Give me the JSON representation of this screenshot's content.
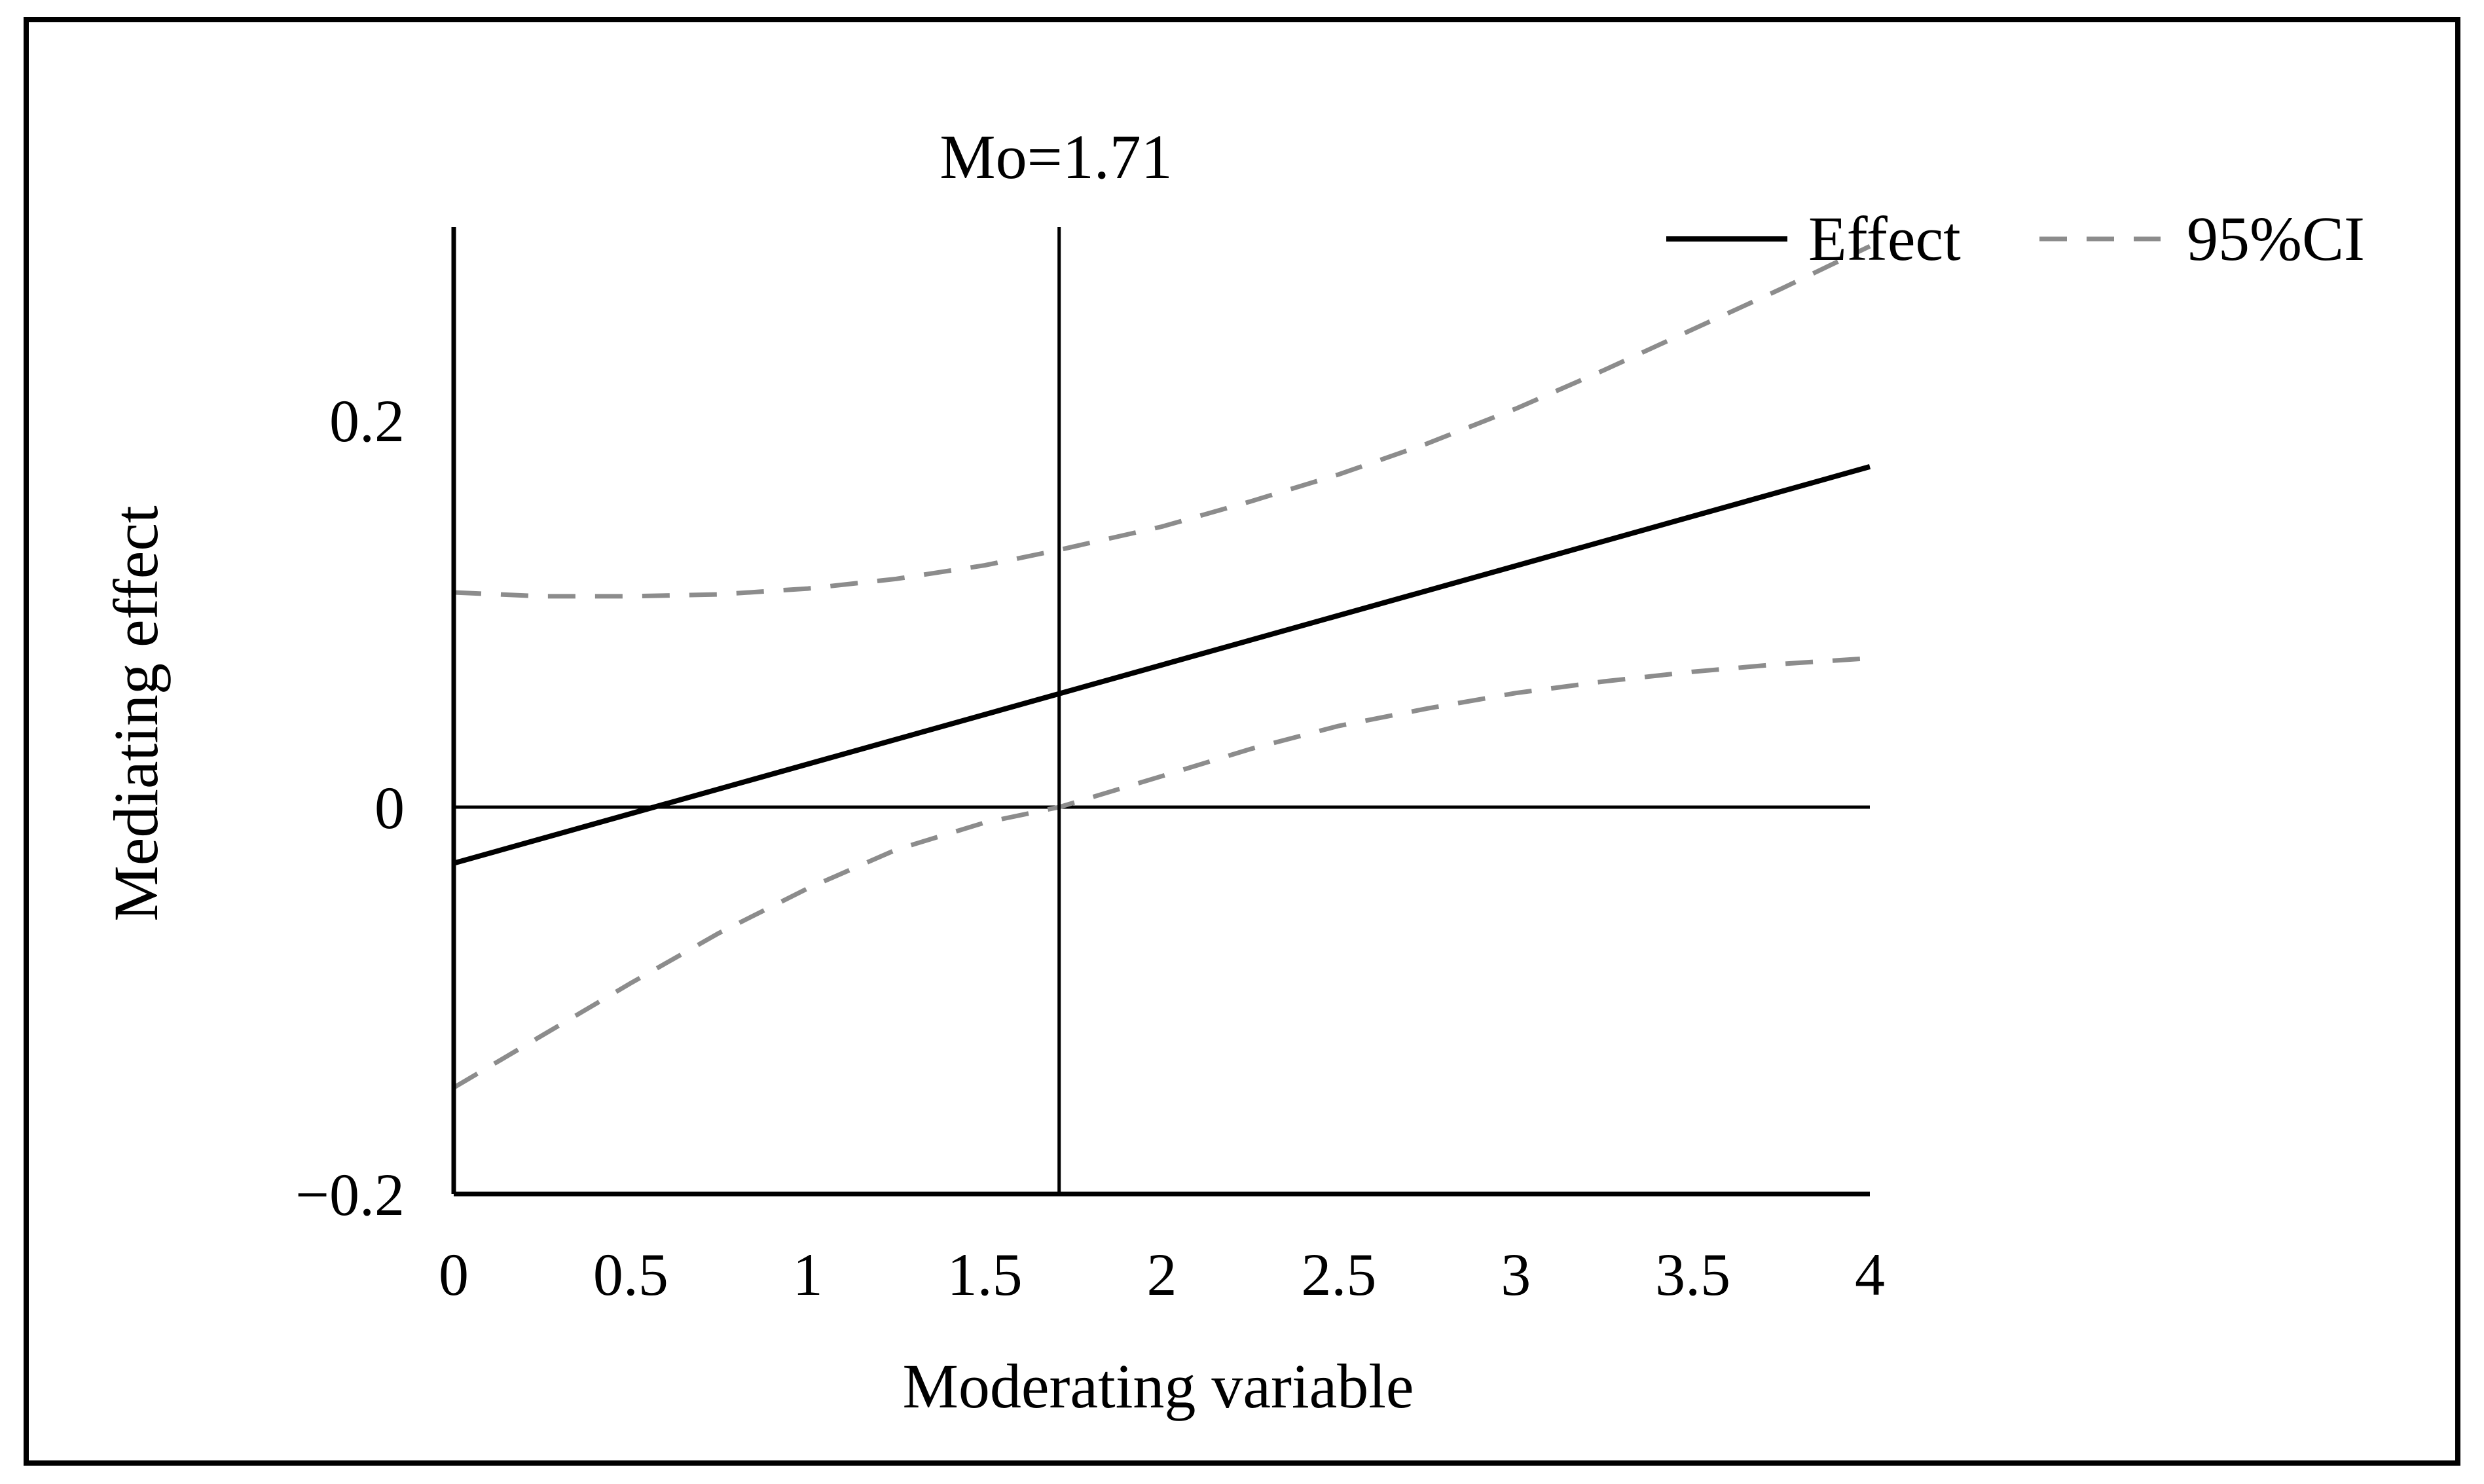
{
  "chart_data": {
    "type": "line",
    "title": "",
    "xlabel": "Moderating variable",
    "ylabel": "Mediating effect",
    "xlim": [
      0,
      4
    ],
    "ylim": [
      -0.2,
      0.3
    ],
    "x_ticks": [
      0,
      0.5,
      1,
      1.5,
      2,
      2.5,
      3,
      3.5,
      4
    ],
    "x_tick_labels": [
      "0",
      "0.5",
      "1",
      "1.5",
      "2",
      "2.5",
      "3",
      "3.5",
      "4"
    ],
    "y_ticks": [
      -0.2,
      0,
      0.2
    ],
    "y_tick_labels": [
      "−0.2",
      "0",
      "0.2"
    ],
    "reference_line": {
      "x": 1.71,
      "label": "Mo=1.71"
    },
    "zero_line": 0,
    "legend_position": "top-right",
    "series": [
      {
        "name": "Effect",
        "style": "solid",
        "color": "#000000",
        "x": [
          0,
          4
        ],
        "values": [
          -0.029,
          0.176
        ]
      },
      {
        "name": "95%CI",
        "role": "upper",
        "style": "dashed",
        "color": "#8c8c8c",
        "x": [
          0,
          0.25,
          0.5,
          0.75,
          1,
          1.25,
          1.5,
          1.71,
          2,
          2.25,
          2.5,
          2.75,
          3,
          3.25,
          3.5,
          3.75,
          4
        ],
        "values": [
          0.111,
          0.109,
          0.109,
          0.11,
          0.113,
          0.118,
          0.125,
          0.133,
          0.145,
          0.158,
          0.172,
          0.188,
          0.206,
          0.226,
          0.247,
          0.268,
          0.29
        ]
      },
      {
        "name": "95%CI",
        "role": "lower",
        "style": "dashed",
        "color": "#8c8c8c",
        "x": [
          0,
          0.25,
          0.5,
          0.75,
          1,
          1.25,
          1.5,
          1.71,
          2,
          2.25,
          2.5,
          2.75,
          3,
          3.25,
          3.5,
          3.75,
          4
        ],
        "values": [
          -0.145,
          -0.118,
          -0.091,
          -0.065,
          -0.042,
          -0.022,
          -0.008,
          0.0,
          0.016,
          0.03,
          0.042,
          0.051,
          0.059,
          0.065,
          0.07,
          0.074,
          0.077
        ]
      }
    ]
  }
}
